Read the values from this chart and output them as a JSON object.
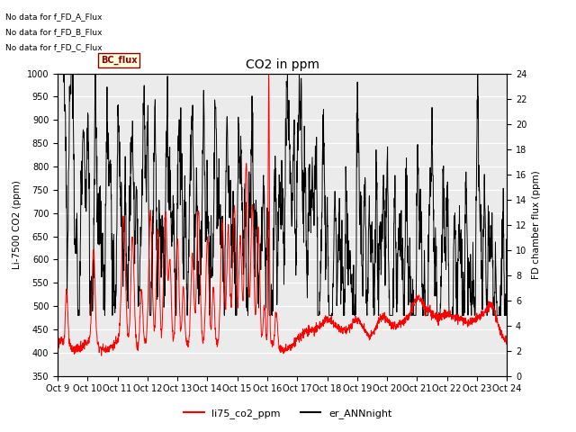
{
  "title": "CO2 in ppm",
  "ylabel_left": "Li-7500 CO2 (ppm)",
  "ylabel_right": "FD chamber flux (ppm)",
  "ylim_left": [
    350,
    1000
  ],
  "ylim_right": [
    0,
    24
  ],
  "yticks_left": [
    350,
    400,
    450,
    500,
    550,
    600,
    650,
    700,
    750,
    800,
    850,
    900,
    950,
    1000
  ],
  "yticks_right": [
    0,
    2,
    4,
    6,
    8,
    10,
    12,
    14,
    16,
    18,
    20,
    22,
    24
  ],
  "xtick_labels": [
    "Oct 9",
    "Oct 10",
    "Oct 11",
    "Oct 12",
    "Oct 13",
    "Oct 14",
    "Oct 15",
    "Oct 16",
    "Oct 17",
    "Oct 18",
    "Oct 19",
    "Oct 20",
    "Oct 21",
    "Oct 22",
    "Oct 23",
    "Oct 24"
  ],
  "no_data_texts": [
    "No data for f_FD_A_Flux",
    "No data for f_FD_B_Flux",
    "No data for f_FD_C_Flux"
  ],
  "legend_label_red": "li75_co2_ppm",
  "legend_label_black": "er_ANNnight",
  "bc_flux_label": "BC_flux",
  "background_color": "#ffffff",
  "plot_bg_color": "#ebebeb",
  "grid_color": "#ffffff",
  "red_color": "#ff0000",
  "black_color": "#000000",
  "n_days": 15,
  "n_points": 2000
}
